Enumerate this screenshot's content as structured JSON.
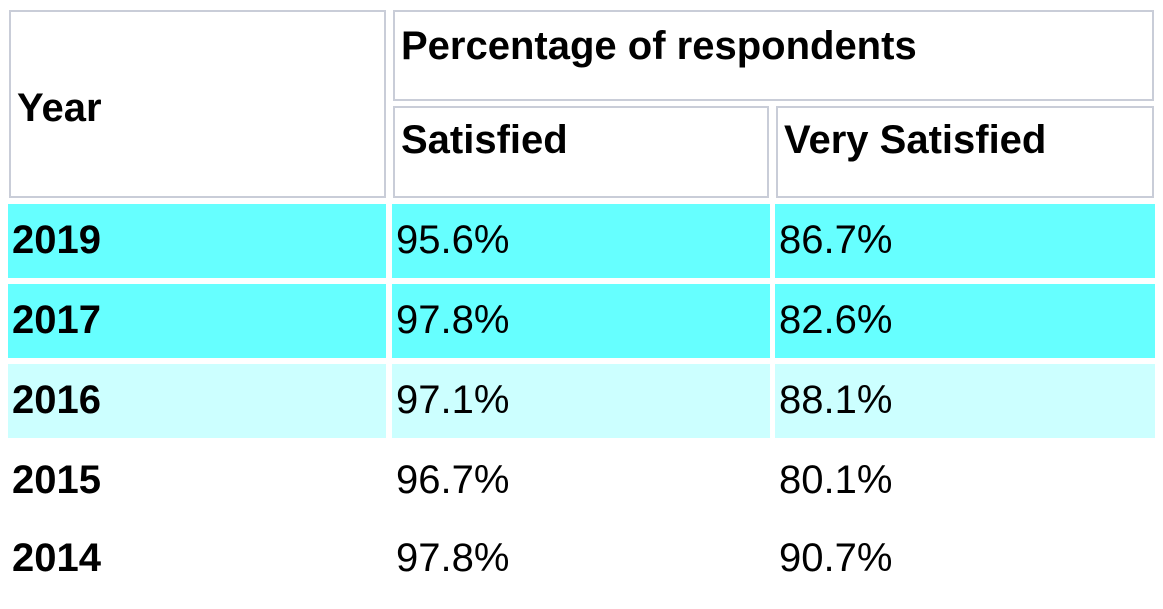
{
  "table": {
    "headers": {
      "year": "Year",
      "group": "Percentage of respondents",
      "satisfied": "Satisfied",
      "very_satisfied": "Very Satisfied"
    },
    "highlight_colors": {
      "strong": "#66ffff",
      "light": "#ccffff"
    },
    "rows": [
      {
        "year": "2019",
        "satisfied": "95.6%",
        "very_satisfied": "86.7%",
        "highlight": "strong"
      },
      {
        "year": "2017",
        "satisfied": "97.8%",
        "very_satisfied": "82.6%",
        "highlight": "strong"
      },
      {
        "year": "2016",
        "satisfied": "97.1%",
        "very_satisfied": "88.1%",
        "highlight": "light"
      },
      {
        "year": "2015",
        "satisfied": "96.7%",
        "very_satisfied": "80.1%",
        "highlight": "none"
      },
      {
        "year": "2014",
        "satisfied": "97.8%",
        "very_satisfied": "90.7%",
        "highlight": "none"
      }
    ]
  }
}
